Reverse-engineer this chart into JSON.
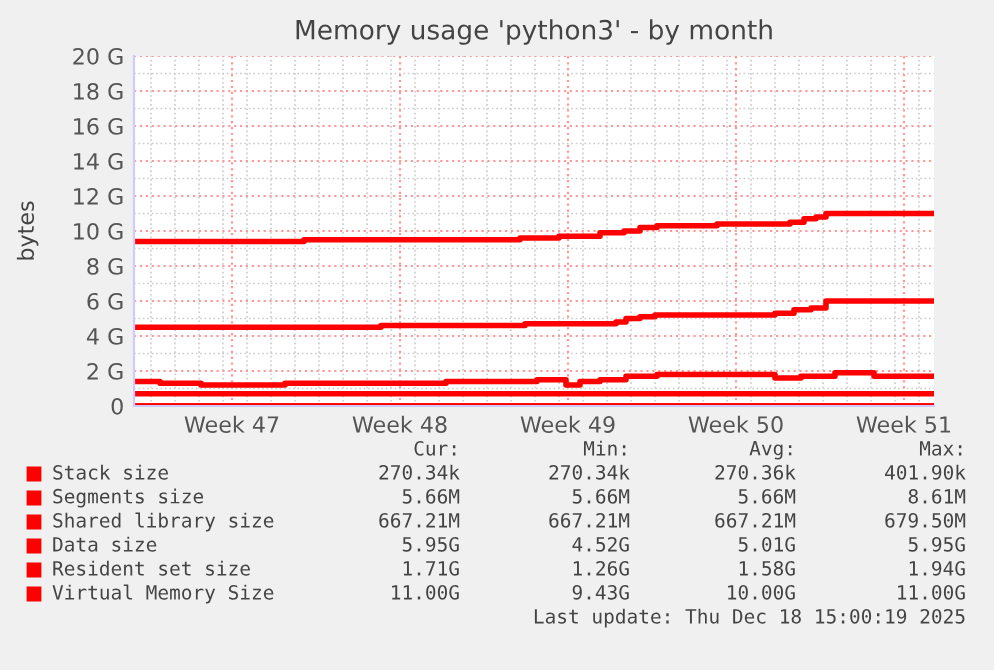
{
  "chart_data": {
    "type": "step",
    "title": "Memory usage 'python3' - by month",
    "ylabel": "bytes",
    "xlim": [
      "2025-11-15T07:00",
      "2025-12-18T15:00"
    ],
    "xticks": [
      {
        "value": "2025-11-19T09:00",
        "label": "Week 47"
      },
      {
        "value": "2025-11-26T09:00",
        "label": "Week 48"
      },
      {
        "value": "2025-12-03T09:00",
        "label": "Week 49"
      },
      {
        "value": "2025-12-10T09:00",
        "label": "Week 50"
      },
      {
        "value": "2025-12-17T09:00",
        "label": "Week 51"
      }
    ],
    "ylim": [
      0,
      20
    ],
    "yticks": [
      0,
      {
        "value": 2,
        "label": "2 G"
      },
      {
        "value": 4,
        "label": "4 G"
      },
      {
        "value": 6,
        "label": "6 G"
      },
      {
        "value": 8,
        "label": "8 G"
      },
      {
        "value": 10,
        "label": "10 G"
      },
      {
        "value": 12,
        "label": "12 G"
      },
      {
        "value": 14,
        "label": "14 G"
      },
      {
        "value": 16,
        "label": "16 G"
      },
      {
        "value": 18,
        "label": "18 G"
      },
      {
        "value": 20,
        "label": "20 G"
      }
    ],
    "grid": true,
    "legend": "bottom",
    "marker": "none",
    "line_style": "solid",
    "series": [
      {
        "name": "Stack size",
        "color": "#ff0000",
        "x": [
          "2025-11-15T07:00",
          "2025-12-18T15:00"
        ],
        "values": [
          0,
          0
        ]
      },
      {
        "name": "Segments size",
        "color": "#ff0000",
        "x": [
          "2025-11-15T07:00",
          "2025-12-18T15:00"
        ],
        "values": [
          0,
          0
        ]
      },
      {
        "name": "Shared library size",
        "color": "#ff0000",
        "x": [
          "2025-11-15T07:00",
          "2025-12-18T15:00"
        ],
        "values": [
          0.7,
          0.7
        ]
      },
      {
        "name": "Data size",
        "color": "#ff0000",
        "x": [
          "2025-11-15T07:00",
          "2025-11-25T14:00",
          "2025-12-01T14:00",
          "2025-12-05T09:00",
          "2025-12-05T19:00",
          "2025-12-06T09:00",
          "2025-12-07T00:00",
          "2025-12-12T00:00",
          "2025-12-12T19:00",
          "2025-12-13T12:00",
          "2025-12-14T03:00",
          "2025-12-18T15:00"
        ],
        "values": [
          4.5,
          4.6,
          4.7,
          4.8,
          5.0,
          5.1,
          5.2,
          5.3,
          5.5,
          5.6,
          6.0,
          6.0
        ]
      },
      {
        "name": "Resident set size",
        "color": "#ff0000",
        "x": [
          "2025-11-15T07:00",
          "2025-11-16T09:00",
          "2025-11-18T02:00",
          "2025-11-21T14:00",
          "2025-11-28T07:00",
          "2025-12-02T02:00",
          "2025-12-03T07:00",
          "2025-12-03T21:00",
          "2025-12-04T17:00",
          "2025-12-05T19:00",
          "2025-12-07T02:00",
          "2025-12-12T00:00",
          "2025-12-13T02:00",
          "2025-12-14T12:00",
          "2025-12-16T03:00",
          "2025-12-18T15:00"
        ],
        "values": [
          1.4,
          1.3,
          1.2,
          1.3,
          1.4,
          1.5,
          1.2,
          1.4,
          1.5,
          1.7,
          1.8,
          1.6,
          1.7,
          1.9,
          1.7,
          1.7
        ]
      },
      {
        "name": "Virtual Memory Size",
        "color": "#ff0000",
        "x": [
          "2025-11-15T07:00",
          "2025-11-22T09:00",
          "2025-12-01T09:00",
          "2025-12-03T00:00",
          "2025-12-04T17:00",
          "2025-12-05T17:00",
          "2025-12-06T09:00",
          "2025-12-07T02:00",
          "2025-12-09T14:00",
          "2025-12-12T15:00",
          "2025-12-13T05:00",
          "2025-12-13T17:00",
          "2025-12-14T03:00",
          "2025-12-18T15:00"
        ],
        "values": [
          9.4,
          9.5,
          9.6,
          9.7,
          9.9,
          10.0,
          10.2,
          10.3,
          10.4,
          10.5,
          10.7,
          10.8,
          11.0,
          11.0
        ]
      }
    ],
    "annotations": [
      "Cur:",
      "Min:",
      "Avg:",
      "Max:",
      "270.34k",
      "270.34k",
      "270.36k",
      "401.90k",
      "5.66M",
      "5.66M",
      "5.66M",
      "8.61M",
      "667.21M",
      "667.21M",
      "667.21M",
      "679.50M",
      "5.95G",
      "4.52G",
      "5.01G",
      "5.95G",
      "1.71G",
      "1.26G",
      "1.58G",
      "1.94G",
      "11.00G",
      "9.43G",
      "10.00G",
      "11.00G",
      "Last update: Thu Dec 18 15:00:19 2025"
    ]
  }
}
